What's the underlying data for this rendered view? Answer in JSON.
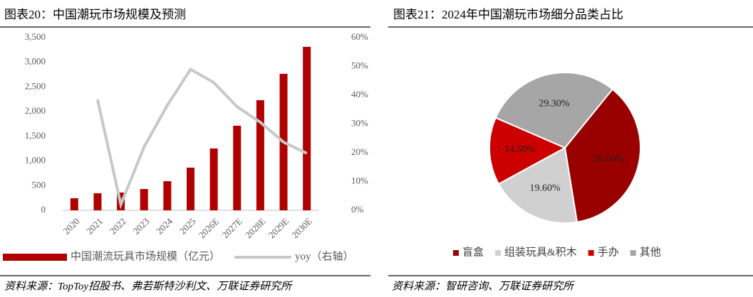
{
  "chart_data": [
    {
      "type": "bar",
      "title": "图表20：中国潮玩市场规模及预测",
      "categories": [
        "2020",
        "2021",
        "2022",
        "2023",
        "2024",
        "2025",
        "2026E",
        "2027E",
        "2028E",
        "2029E",
        "2030E"
      ],
      "series": [
        {
          "name": "中国潮流玩具市场规模（亿元）",
          "type": "bar",
          "color": "#b00000",
          "values": [
            245,
            346,
            360,
            432,
            590,
            865,
            1254,
            1715,
            2233,
            2767,
            3314
          ]
        },
        {
          "name": "yoy（右轴）",
          "type": "line",
          "axis": "y2",
          "color": "#c8c8c8",
          "values": [
            null,
            38.5,
            2.0,
            22,
            36.5,
            49,
            44.4,
            36,
            30.6,
            23.7,
            19.8
          ]
        }
      ],
      "ylim": [
        0,
        3500
      ],
      "yticks": [
        0,
        500,
        {
          "value": 1000,
          "label": "1,000"
        },
        {
          "value": 1500,
          "label": "1,500"
        },
        {
          "value": 2000,
          "label": "2,000"
        },
        {
          "value": 2500,
          "label": "2,500"
        },
        {
          "value": 3000,
          "label": "3,000"
        },
        {
          "value": 3500,
          "label": "3,500"
        }
      ],
      "y2lim": [
        0,
        60
      ],
      "y2ticks": [
        {
          "value": 0,
          "label": "0%"
        },
        {
          "value": 10,
          "label": "10%"
        },
        {
          "value": 20,
          "label": "20%"
        },
        {
          "value": 30,
          "label": "30%"
        },
        {
          "value": 40,
          "label": "40%"
        },
        {
          "value": 50,
          "label": "50%"
        },
        {
          "value": 60,
          "label": "60%"
        }
      ],
      "legend": "bottom",
      "source": "资料来源：TopToy招股书、弗若斯特沙利文、万联证券研究所"
    },
    {
      "type": "pie",
      "title": "图表21：2024年中国潮玩市场细分品类占比",
      "categories": [
        "盲盒",
        "组装玩具&积木",
        "手办",
        "其他"
      ],
      "values": [
        36.6,
        19.6,
        14.5,
        29.3
      ],
      "value_labels": [
        "36.60%",
        "19.60%",
        "14.50%",
        "29.30%"
      ],
      "colors": [
        "#990000",
        "#d0d0d0",
        "#cc0000",
        "#a6a6a6"
      ],
      "legend": "bottom",
      "source": "资料来源：智研咨询、万联证券研究所"
    }
  ]
}
